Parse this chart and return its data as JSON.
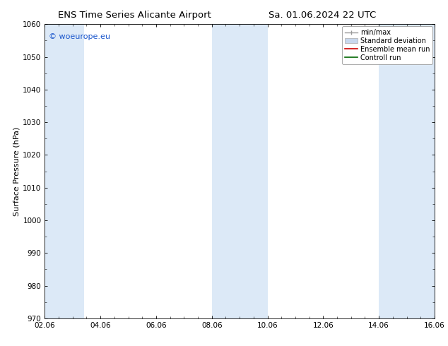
{
  "title_left": "ENS Time Series Alicante Airport",
  "title_right": "Sa. 01.06.2024 22 UTC",
  "ylabel": "Surface Pressure (hPa)",
  "xlim_dates": [
    "02.06",
    "04.06",
    "06.06",
    "08.06",
    "10.06",
    "12.06",
    "14.06",
    "16.06"
  ],
  "xlim": [
    0,
    14
  ],
  "ylim": [
    970,
    1060
  ],
  "yticks": [
    970,
    980,
    990,
    1000,
    1010,
    1020,
    1030,
    1040,
    1050,
    1060
  ],
  "watermark": "© woeurope.eu",
  "watermark_color": "#1a56cc",
  "bg_color": "#ffffff",
  "shaded_bands": [
    {
      "x_start": 0.0,
      "x_end": 1.4,
      "color": "#dce9f7"
    },
    {
      "x_start": 6.0,
      "x_end": 8.0,
      "color": "#dce9f7"
    },
    {
      "x_start": 12.0,
      "x_end": 14.0,
      "color": "#dce9f7"
    }
  ],
  "legend_items": [
    {
      "label": "min/max",
      "color": "#999999",
      "type": "errorbar"
    },
    {
      "label": "Standard deviation",
      "color": "#c8d8ee",
      "type": "box"
    },
    {
      "label": "Ensemble mean run",
      "color": "#cc0000",
      "type": "line"
    },
    {
      "label": "Controll run",
      "color": "#006600",
      "type": "line"
    }
  ],
  "title_fontsize": 9.5,
  "tick_fontsize": 7.5,
  "ylabel_fontsize": 8,
  "legend_fontsize": 7
}
